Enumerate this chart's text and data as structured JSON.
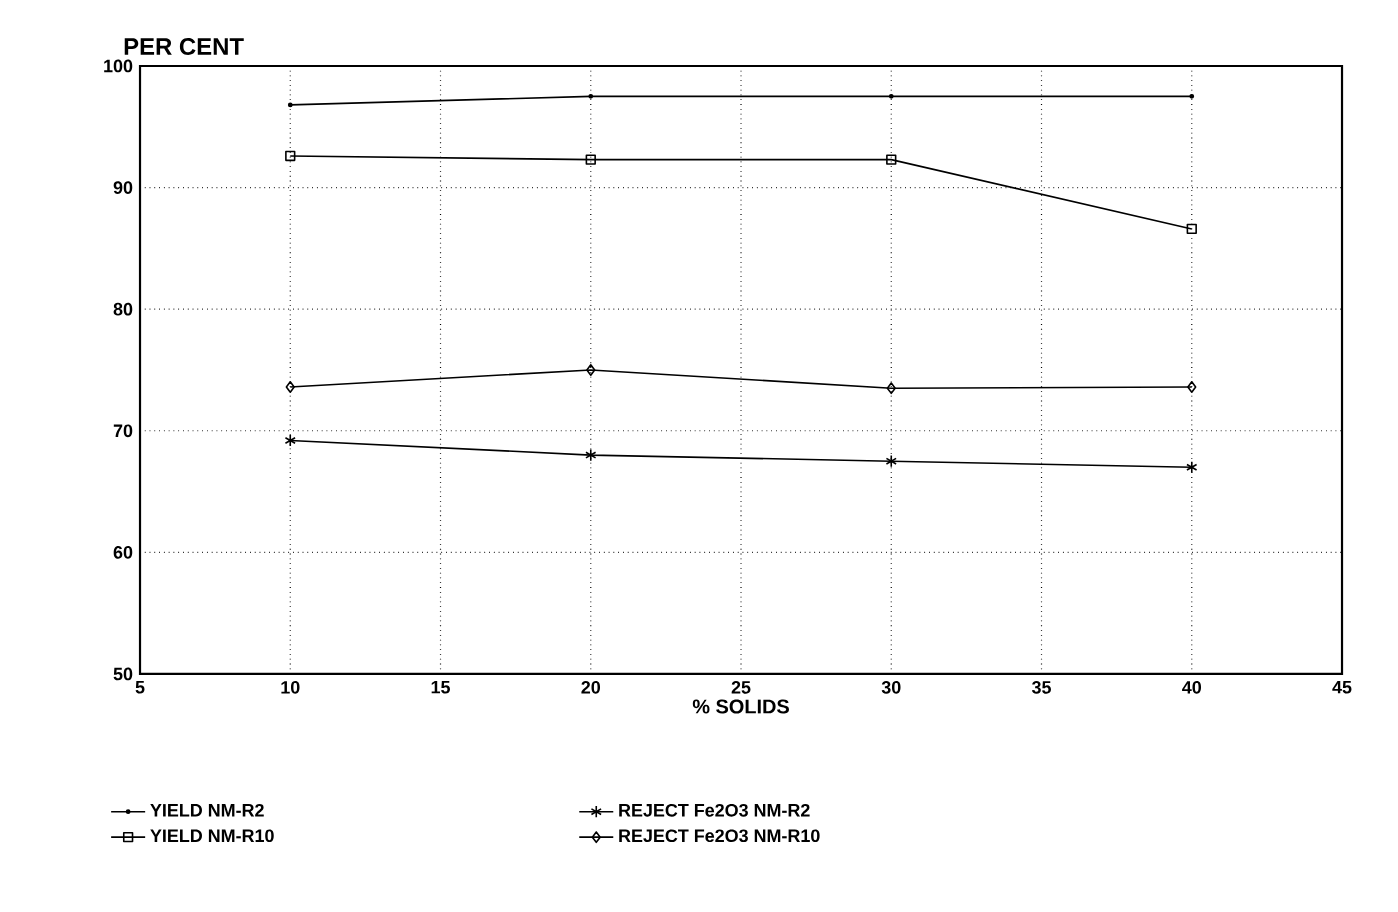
{
  "chart_data": {
    "type": "line",
    "ylabel": "PER CENT",
    "xlabel": "% SOLIDS",
    "x": [
      10,
      20,
      30,
      40
    ],
    "series": [
      {
        "name": "YIELD NM-R2",
        "color": "#000000",
        "marker": "circle",
        "values": [
          96.8,
          97.5,
          97.5,
          97.5
        ]
      },
      {
        "name": "YIELD NM-R10",
        "color": "#000000",
        "marker": "square",
        "values": [
          92.6,
          92.3,
          92.3,
          86.6
        ]
      },
      {
        "name": "REJECT Fe2O3 NM-R2",
        "color": "#000000",
        "marker": "cross",
        "values": [
          69.2,
          68.0,
          67.5,
          67.0
        ]
      },
      {
        "name": "REJECT Fe2O3 NM-R10",
        "color": "#000000",
        "marker": "diamond",
        "values": [
          73.6,
          75.0,
          73.5,
          73.6
        ]
      }
    ],
    "xlim": [
      5,
      45
    ],
    "xticks": [
      5,
      10,
      15,
      20,
      25,
      30,
      35,
      40,
      45
    ],
    "ylim": [
      50,
      100
    ],
    "yticks": [
      50,
      60,
      70,
      80,
      90,
      100
    ],
    "grid": true,
    "legend": "bottom",
    "line_style": "solid"
  }
}
